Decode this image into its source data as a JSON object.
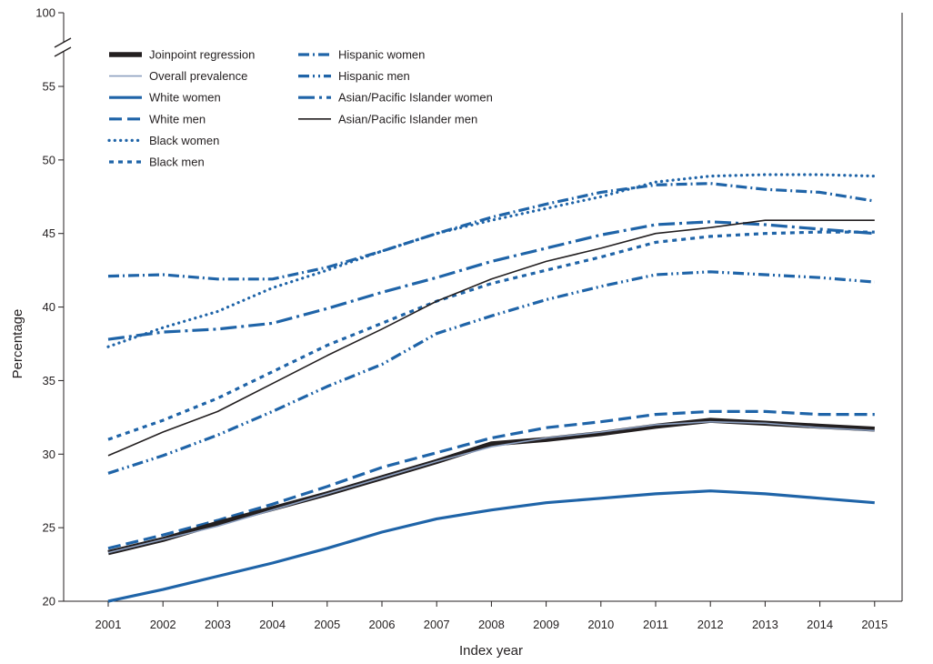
{
  "chart_data": {
    "type": "line",
    "title": "",
    "xlabel": "Index year",
    "ylabel": "Percentage",
    "ylim": [
      20,
      55
    ],
    "y_break_top_label": "100",
    "yticks": [
      20,
      25,
      30,
      35,
      40,
      45,
      50,
      55
    ],
    "x": [
      "2001",
      "2002",
      "2003",
      "2004",
      "2005",
      "2006",
      "2007",
      "2008",
      "2009",
      "2010",
      "2011",
      "2012",
      "2013",
      "2014",
      "2015"
    ],
    "series": [
      {
        "name": "Joinpoint regression",
        "style": "thick-solid",
        "color": "#231f20",
        "values": [
          23.3,
          24.2,
          25.3,
          26.3,
          27.3,
          28.4,
          29.5,
          30.7,
          31.0,
          31.4,
          31.9,
          32.3,
          32.1,
          31.9,
          31.7
        ]
      },
      {
        "name": "Overall prevalence",
        "style": "thin-solid",
        "color": "#8c9fbf",
        "values": [
          23.3,
          24.2,
          25.1,
          26.2,
          27.3,
          28.4,
          29.5,
          30.5,
          31.1,
          31.5,
          32.0,
          32.2,
          32.1,
          31.8,
          31.6
        ]
      },
      {
        "name": "White women",
        "style": "solid",
        "color": "#1f64a8",
        "values": [
          20.0,
          20.8,
          21.7,
          22.6,
          23.6,
          24.7,
          25.6,
          26.2,
          26.7,
          27.0,
          27.3,
          27.5,
          27.3,
          27.0,
          26.7
        ]
      },
      {
        "name": "White men",
        "style": "dash",
        "color": "#1f64a8",
        "values": [
          23.6,
          24.5,
          25.5,
          26.6,
          27.8,
          29.1,
          30.1,
          31.1,
          31.8,
          32.2,
          32.7,
          32.9,
          32.9,
          32.7,
          32.7
        ]
      },
      {
        "name": "Black women",
        "style": "dot",
        "color": "#1f64a8",
        "values": [
          37.3,
          38.6,
          39.7,
          41.3,
          42.5,
          43.8,
          45.0,
          45.9,
          46.7,
          47.5,
          48.5,
          48.9,
          49.0,
          49.0,
          48.9
        ]
      },
      {
        "name": "Black men",
        "style": "short-dash",
        "color": "#1f64a8",
        "values": [
          31.0,
          32.3,
          33.8,
          35.6,
          37.4,
          38.9,
          40.4,
          41.6,
          42.5,
          43.4,
          44.4,
          44.8,
          45.0,
          45.1,
          45.1
        ]
      },
      {
        "name": "Hispanic women",
        "style": "dash-dot",
        "color": "#1f64a8",
        "values": [
          42.1,
          42.2,
          41.9,
          41.9,
          42.7,
          43.8,
          45.0,
          46.1,
          47.0,
          47.8,
          48.3,
          48.4,
          48.0,
          47.8,
          47.2
        ]
      },
      {
        "name": "Hispanic men",
        "style": "dash-dot-dot",
        "color": "#1f64a8",
        "values": [
          28.7,
          29.9,
          31.3,
          32.9,
          34.6,
          36.1,
          38.2,
          39.4,
          40.5,
          41.4,
          42.2,
          42.4,
          42.2,
          42.0,
          41.7
        ]
      },
      {
        "name": "Asian/Pacific Islander women",
        "style": "long-dash-dot",
        "color": "#1f64a8",
        "values": [
          37.8,
          38.3,
          38.5,
          38.9,
          39.9,
          41.0,
          42.0,
          43.1,
          44.0,
          44.9,
          45.6,
          45.8,
          45.6,
          45.3,
          45.0
        ]
      },
      {
        "name": "Asian/Pacific Islander men",
        "style": "thin-solid-black",
        "color": "#231f20",
        "values": [
          29.9,
          31.5,
          32.9,
          34.8,
          36.7,
          38.5,
          40.4,
          41.9,
          43.1,
          44.0,
          45.0,
          45.4,
          45.9,
          45.9,
          45.9
        ]
      }
    ],
    "legend_position": "top-left"
  }
}
